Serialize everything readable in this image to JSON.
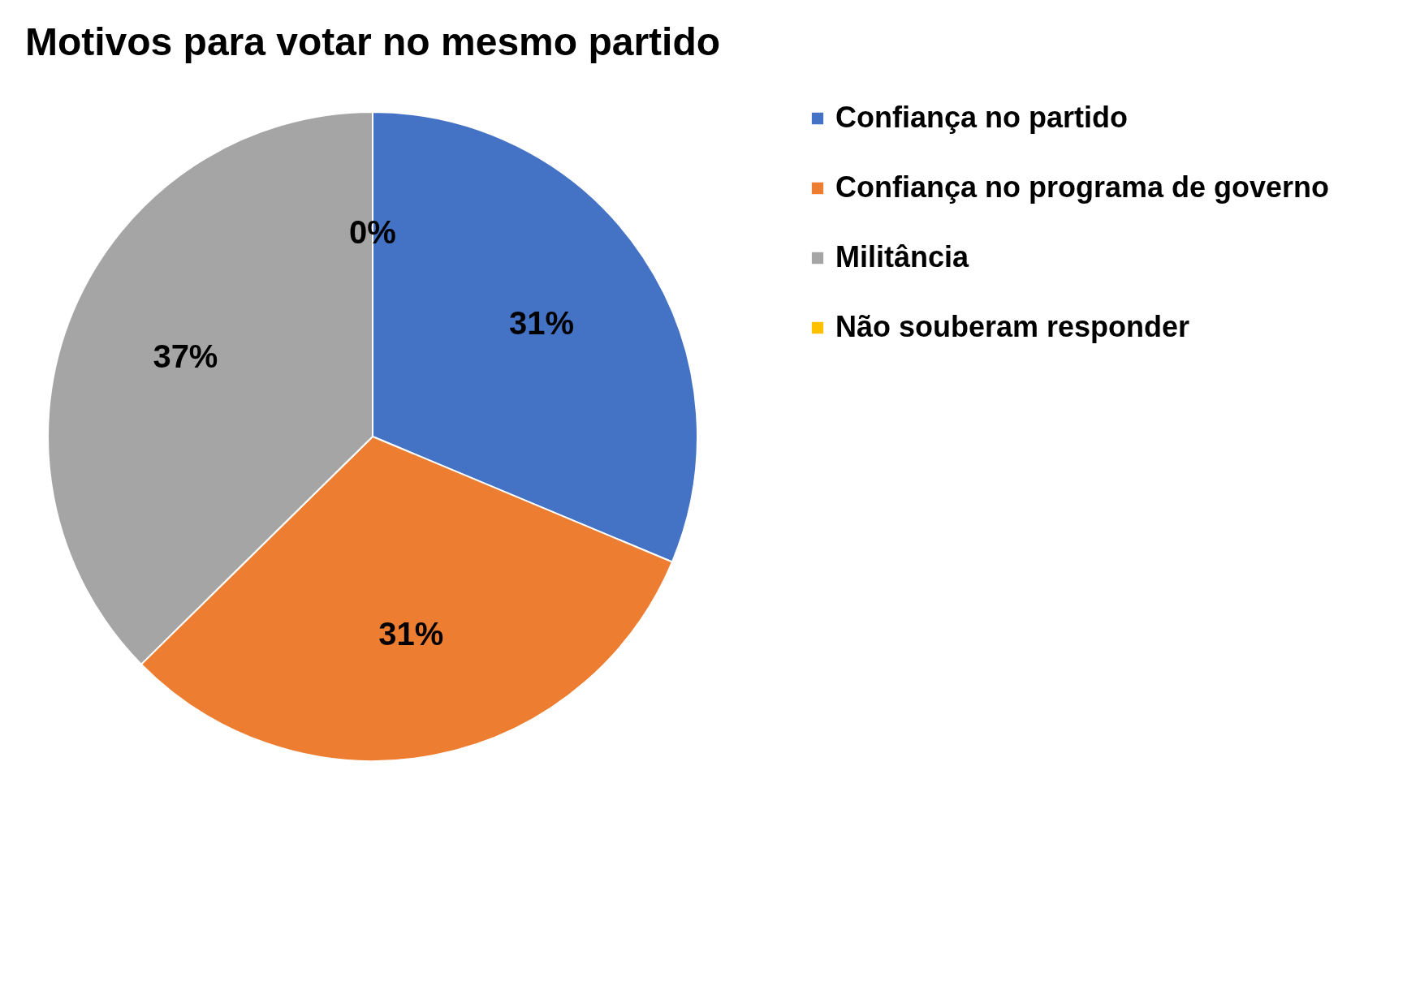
{
  "chart_data": {
    "type": "pie",
    "title": "Motivos para votar no mesmo partido",
    "categories": [
      "Confiança no partido",
      "Confiança no programa de governo",
      "Militância",
      "Não souberam responder"
    ],
    "values": [
      31,
      31,
      37,
      0
    ],
    "value_labels": [
      "31%",
      "31%",
      "37%",
      "0%"
    ],
    "colors": [
      "#4472c4",
      "#ed7d31",
      "#a5a5a5",
      "#ffc000"
    ],
    "legend": "right"
  }
}
